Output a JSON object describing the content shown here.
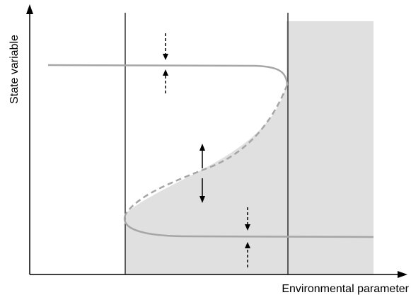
{
  "diagram": {
    "x_axis_label": "Environmental parameter",
    "y_axis_label": "State variable"
  },
  "colors": {
    "background": "#ffffff",
    "axis": "#000000",
    "shaded_region": "#e0e0e0",
    "curve": "#a6a6a6",
    "boundary_line": "#000000",
    "arrow": "#000000"
  },
  "icons": {
    "axis_arrowhead": "arrowhead-icon",
    "solid_double_arrow": "double-arrow-icon",
    "dashed_arrow": "dashed-arrow-icon"
  }
}
